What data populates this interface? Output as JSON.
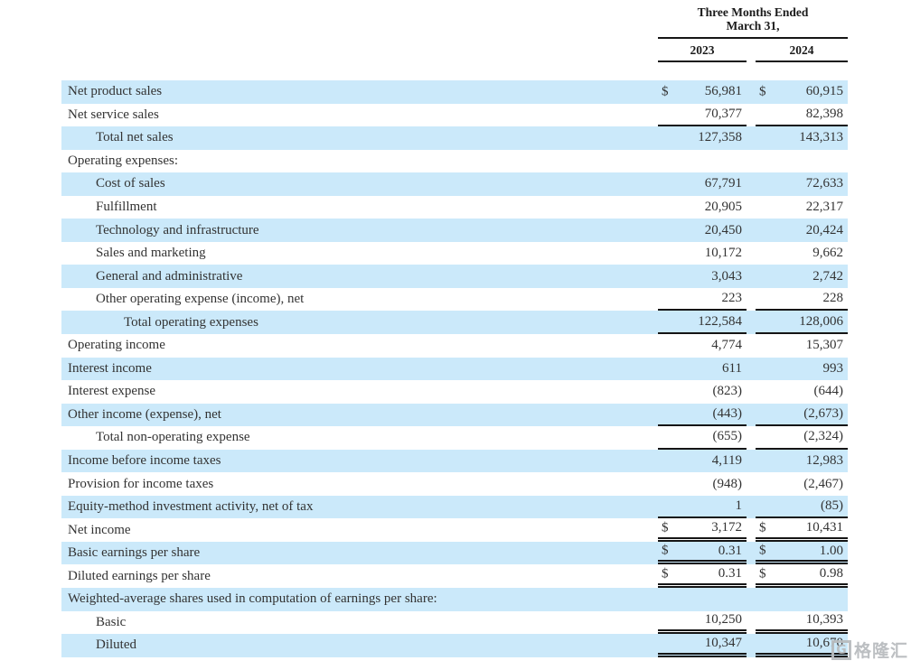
{
  "colors": {
    "row_highlight": "#cbe9fa",
    "rule": "#151515",
    "text": "#333333",
    "watermark": "#b9bcbf"
  },
  "table": {
    "period_line1": "Three Months Ended",
    "period_line2": "March 31,",
    "columns": [
      "2023",
      "2024"
    ],
    "rows": [
      {
        "label": "Net product sales",
        "indent": 0,
        "dollar": true,
        "v2023": "56,981",
        "v2024": "60,915",
        "bg": "blue",
        "underline": "none"
      },
      {
        "label": "Net service sales",
        "indent": 0,
        "dollar": false,
        "v2023": "70,377",
        "v2024": "82,398",
        "bg": "white",
        "underline": "single"
      },
      {
        "label": "Total net sales",
        "indent": 1,
        "dollar": false,
        "v2023": "127,358",
        "v2024": "143,313",
        "bg": "blue",
        "underline": "none"
      },
      {
        "label": "Operating expenses:",
        "indent": 0,
        "dollar": false,
        "v2023": "",
        "v2024": "",
        "bg": "white",
        "underline": "none"
      },
      {
        "label": "Cost of sales",
        "indent": 1,
        "dollar": false,
        "v2023": "67,791",
        "v2024": "72,633",
        "bg": "blue",
        "underline": "none"
      },
      {
        "label": "Fulfillment",
        "indent": 1,
        "dollar": false,
        "v2023": "20,905",
        "v2024": "22,317",
        "bg": "white",
        "underline": "none"
      },
      {
        "label": "Technology and infrastructure",
        "indent": 1,
        "dollar": false,
        "v2023": "20,450",
        "v2024": "20,424",
        "bg": "blue",
        "underline": "none"
      },
      {
        "label": "Sales and marketing",
        "indent": 1,
        "dollar": false,
        "v2023": "10,172",
        "v2024": "9,662",
        "bg": "white",
        "underline": "none"
      },
      {
        "label": "General and administrative",
        "indent": 1,
        "dollar": false,
        "v2023": "3,043",
        "v2024": "2,742",
        "bg": "blue",
        "underline": "none"
      },
      {
        "label": "Other operating expense (income), net",
        "indent": 1,
        "dollar": false,
        "v2023": "223",
        "v2024": "228",
        "bg": "white",
        "underline": "single"
      },
      {
        "label": "Total operating expenses",
        "indent": 2,
        "dollar": false,
        "v2023": "122,584",
        "v2024": "128,006",
        "bg": "blue",
        "underline": "single"
      },
      {
        "label": "Operating income",
        "indent": 0,
        "dollar": false,
        "v2023": "4,774",
        "v2024": "15,307",
        "bg": "white",
        "underline": "none"
      },
      {
        "label": "Interest income",
        "indent": 0,
        "dollar": false,
        "v2023": "611",
        "v2024": "993",
        "bg": "blue",
        "underline": "none"
      },
      {
        "label": "Interest expense",
        "indent": 0,
        "dollar": false,
        "v2023": "(823)",
        "v2024": "(644)",
        "bg": "white",
        "underline": "none"
      },
      {
        "label": "Other income (expense), net",
        "indent": 0,
        "dollar": false,
        "v2023": "(443)",
        "v2024": "(2,673)",
        "bg": "blue",
        "underline": "single"
      },
      {
        "label": "Total non-operating expense",
        "indent": 1,
        "dollar": false,
        "v2023": "(655)",
        "v2024": "(2,324)",
        "bg": "white",
        "underline": "single"
      },
      {
        "label": "Income before income taxes",
        "indent": 0,
        "dollar": false,
        "v2023": "4,119",
        "v2024": "12,983",
        "bg": "blue",
        "underline": "none"
      },
      {
        "label": "Provision for income taxes",
        "indent": 0,
        "dollar": false,
        "v2023": "(948)",
        "v2024": "(2,467)",
        "bg": "white",
        "underline": "none"
      },
      {
        "label": "Equity-method investment activity, net of tax",
        "indent": 0,
        "dollar": false,
        "v2023": "1",
        "v2024": "(85)",
        "bg": "blue",
        "underline": "single"
      },
      {
        "label": "Net income",
        "indent": 0,
        "dollar": true,
        "v2023": "3,172",
        "v2024": "10,431",
        "bg": "white",
        "underline": "double"
      },
      {
        "label": "Basic earnings per share",
        "indent": 0,
        "dollar": true,
        "v2023": "0.31",
        "v2024": "1.00",
        "bg": "blue",
        "underline": "double"
      },
      {
        "label": "Diluted earnings per share",
        "indent": 0,
        "dollar": true,
        "v2023": "0.31",
        "v2024": "0.98",
        "bg": "white",
        "underline": "double"
      },
      {
        "label": "Weighted-average shares used in computation of earnings per share:",
        "indent": 0,
        "dollar": false,
        "v2023": "",
        "v2024": "",
        "bg": "blue",
        "underline": "none"
      },
      {
        "label": "Basic",
        "indent": 1,
        "dollar": false,
        "v2023": "10,250",
        "v2024": "10,393",
        "bg": "white",
        "underline": "double"
      },
      {
        "label": "Diluted",
        "indent": 1,
        "dollar": false,
        "v2023": "10,347",
        "v2024": "10,670",
        "bg": "blue",
        "underline": "double"
      }
    ],
    "currency_symbol": "$"
  },
  "watermark": {
    "logo_letter": "G",
    "text": "格隆汇"
  }
}
